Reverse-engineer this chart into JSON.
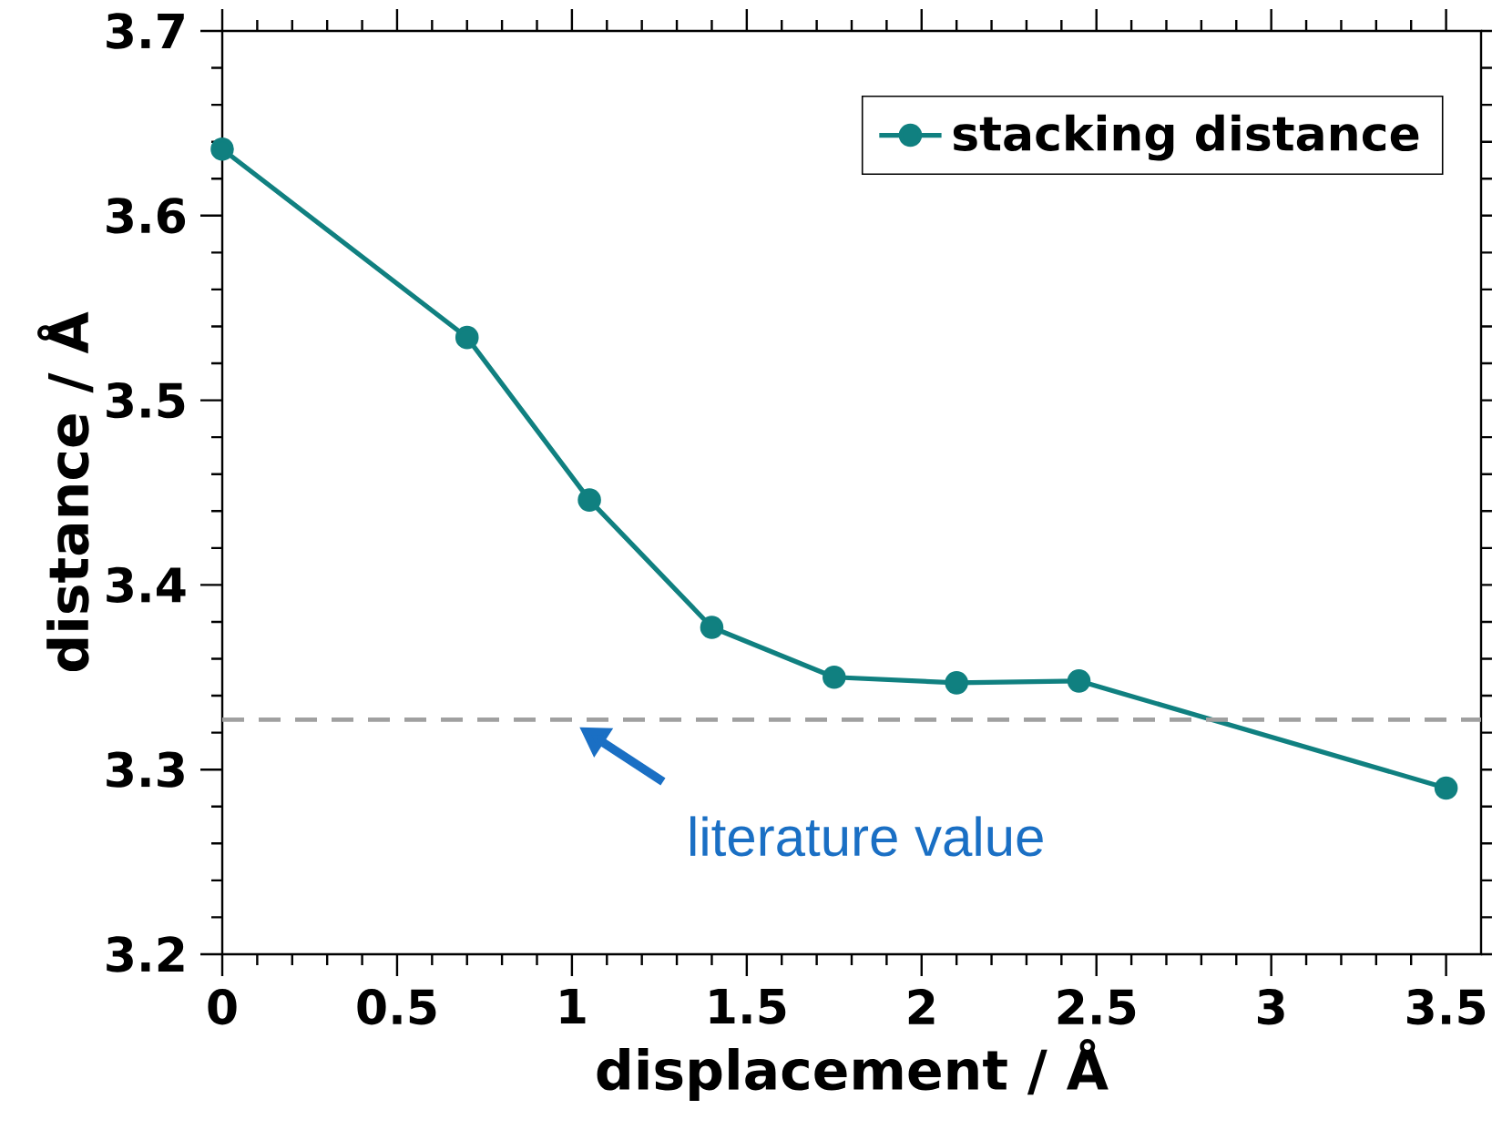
{
  "chart_data": {
    "type": "line",
    "xlabel": "displacement / Å",
    "ylabel": "distance / Å",
    "x": [
      0,
      0.7,
      1.05,
      1.4,
      1.75,
      2.1,
      2.45,
      3.5
    ],
    "series": [
      {
        "name": "stacking distance",
        "color": "#108080",
        "values": [
          3.636,
          3.534,
          3.446,
          3.377,
          3.35,
          3.347,
          3.348,
          3.29
        ]
      }
    ],
    "xlim": [
      0,
      3.6
    ],
    "ylim": [
      3.2,
      3.7
    ],
    "xticks": [
      0,
      0.5,
      1,
      1.5,
      2,
      2.5,
      3,
      3.5
    ],
    "yticks": [
      3.2,
      3.3,
      3.4,
      3.5,
      3.6,
      3.7
    ],
    "ref_lines": [
      {
        "axis": "y",
        "value": 3.327,
        "color": "#a0a0a0",
        "line_style": "dashed"
      }
    ],
    "annotations": [
      {
        "text": "literature value",
        "x": 1.0,
        "y": 3.327
      }
    ],
    "marker": "circle",
    "legend": "top right"
  }
}
